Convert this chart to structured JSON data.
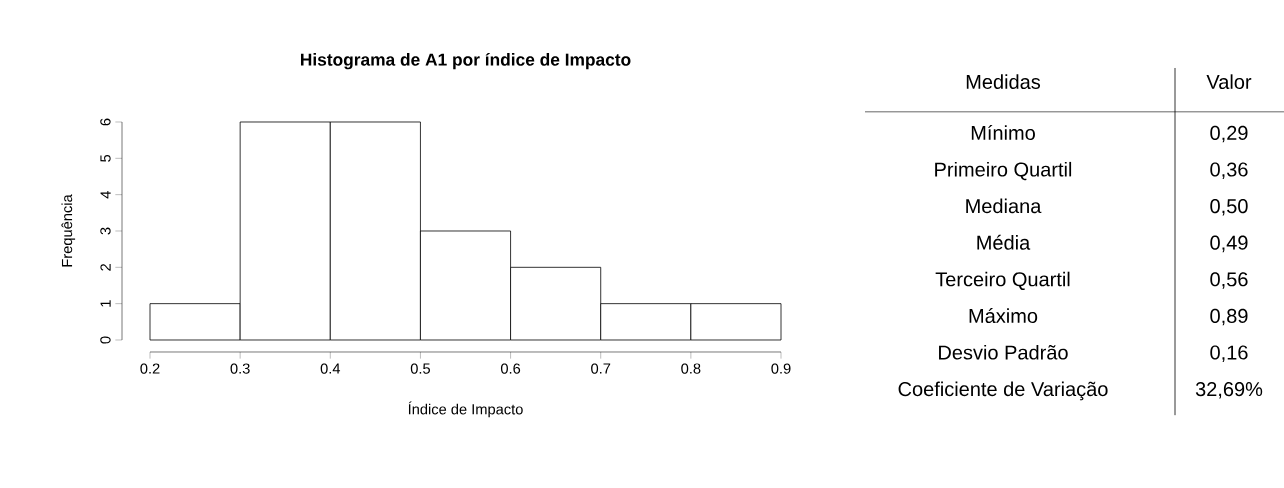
{
  "chart_data": [
    {
      "type": "histogram",
      "title": "Histograma de A1 por índice de Impacto",
      "xlabel": "Índice de Impacto",
      "ylabel": "Frequência",
      "bins": [
        0.2,
        0.3,
        0.4,
        0.5,
        0.6,
        0.7,
        0.8,
        0.9
      ],
      "values": [
        1,
        6,
        6,
        3,
        2,
        1,
        1
      ],
      "color": "#ffffff",
      "xlim": [
        0.2,
        0.9
      ],
      "ylim": [
        0,
        6
      ],
      "xticks": [
        0.2,
        0.3,
        0.4,
        0.5,
        0.6,
        0.7,
        0.8,
        0.9
      ],
      "yticks": [
        0,
        1,
        2,
        3,
        4,
        5,
        6
      ]
    },
    {
      "type": "other",
      "annotations": [
        "Medidas",
        "Valor",
        "Mínimo",
        "0,29",
        "Primeiro Quartil",
        "0,36",
        "Mediana",
        "0,50",
        "Média",
        "0,49",
        "Terceiro Quartil",
        "0,56",
        "Máximo",
        "0,89",
        "Desvio Padrão",
        "0,16",
        "Coeficiente de Variação",
        "32,69%"
      ]
    }
  ]
}
